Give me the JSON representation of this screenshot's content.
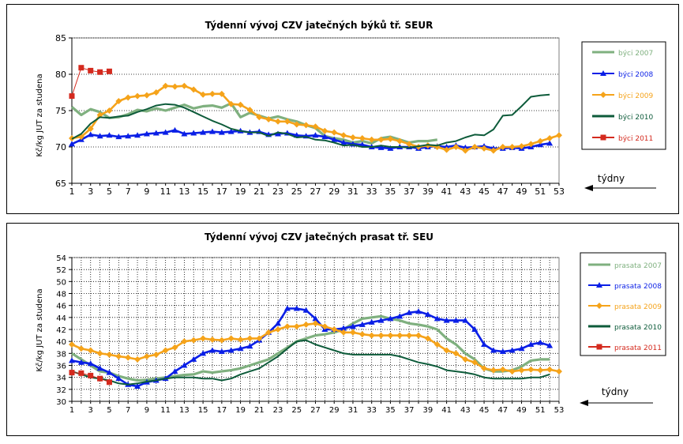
{
  "colors": {
    "y2007": "#7fb07f",
    "y2008": "#0a1fe6",
    "y2009": "#f5a31a",
    "y2010": "#0d5b3a",
    "y2011": "#d42a1e"
  },
  "tydny_label": "týdny",
  "chart_data": [
    {
      "type": "line",
      "title": "Týdenní vývoj CZV jatečných býků tř. SEUR",
      "ylabel": "Kč/kg JUT za studena",
      "xlabel": "",
      "ylim": [
        65,
        85
      ],
      "yticks": [
        65,
        70,
        75,
        80,
        85
      ],
      "xticks": [
        1,
        3,
        5,
        7,
        9,
        11,
        13,
        15,
        17,
        19,
        21,
        23,
        25,
        27,
        29,
        31,
        33,
        35,
        37,
        39,
        41,
        43,
        45,
        47,
        49,
        51,
        53
      ],
      "grid": true,
      "legend_position": "right",
      "series": [
        {
          "name": "býci 2007",
          "color_key": "y2007",
          "marker": "none",
          "x": [
            1,
            2,
            3,
            4,
            5,
            6,
            7,
            8,
            9,
            10,
            11,
            12,
            13,
            14,
            15,
            16,
            17,
            18,
            19,
            20,
            21,
            22,
            23,
            24,
            25,
            26,
            27,
            28,
            29,
            30,
            31,
            32,
            33,
            34,
            35,
            36,
            37,
            38,
            39,
            40
          ],
          "values": [
            75.5,
            74.4,
            75.2,
            74.8,
            74.0,
            74.1,
            74.5,
            75.1,
            74.9,
            75.3,
            75.0,
            75.4,
            75.8,
            75.3,
            75.6,
            75.7,
            75.4,
            76.0,
            74.1,
            74.7,
            74.3,
            73.9,
            74.2,
            73.8,
            73.5,
            73.0,
            72.6,
            71.5,
            71.2,
            71.0,
            70.6,
            70.8,
            70.5,
            71.2,
            71.4,
            71.0,
            70.6,
            70.8,
            70.8,
            71.0
          ]
        },
        {
          "name": "býci 2008",
          "color_key": "y2008",
          "marker": "triangle",
          "x": [
            1,
            2,
            3,
            4,
            5,
            6,
            7,
            8,
            9,
            10,
            11,
            12,
            13,
            14,
            15,
            16,
            17,
            18,
            19,
            20,
            21,
            22,
            23,
            24,
            25,
            26,
            27,
            28,
            29,
            30,
            31,
            32,
            33,
            34,
            35,
            36,
            37,
            38,
            39,
            40,
            41,
            42,
            43,
            44,
            45,
            46,
            47,
            48,
            49,
            50,
            51,
            52
          ],
          "values": [
            70.4,
            71.0,
            71.7,
            71.5,
            71.6,
            71.4,
            71.5,
            71.6,
            71.8,
            71.9,
            72.0,
            72.3,
            71.8,
            71.9,
            72.0,
            72.1,
            72.0,
            72.1,
            72.2,
            72.0,
            72.1,
            71.7,
            71.8,
            71.9,
            71.6,
            71.5,
            71.6,
            71.4,
            71.0,
            70.6,
            70.4,
            70.3,
            70.0,
            69.9,
            69.8,
            70.0,
            70.0,
            69.8,
            70.0,
            70.1,
            70.0,
            70.2,
            69.9,
            70.0,
            70.1,
            69.8,
            69.8,
            69.9,
            69.8,
            70.0,
            70.3,
            70.5
          ]
        },
        {
          "name": "býci 2009",
          "color_key": "y2009",
          "marker": "diamond",
          "x": [
            1,
            2,
            3,
            4,
            5,
            6,
            7,
            8,
            9,
            10,
            11,
            12,
            13,
            14,
            15,
            16,
            17,
            18,
            19,
            20,
            21,
            22,
            23,
            24,
            25,
            26,
            27,
            28,
            29,
            30,
            31,
            32,
            33,
            34,
            35,
            36,
            37,
            38,
            39,
            40,
            41,
            42,
            43,
            44,
            45,
            46,
            47,
            48,
            49,
            50,
            51,
            52,
            53
          ],
          "values": [
            71.2,
            71.4,
            72.5,
            74.4,
            75.0,
            76.3,
            76.8,
            77.0,
            77.1,
            77.5,
            78.4,
            78.3,
            78.4,
            77.9,
            77.2,
            77.3,
            77.3,
            75.9,
            75.8,
            75.1,
            74.1,
            73.8,
            73.5,
            73.5,
            73.1,
            73.0,
            72.8,
            72.2,
            72.0,
            71.6,
            71.3,
            71.2,
            71.0,
            71.0,
            71.1,
            70.8,
            70.4,
            70.0,
            70.2,
            70.0,
            69.6,
            70.0,
            69.5,
            70.0,
            69.8,
            69.5,
            70.0,
            70.0,
            70.1,
            70.4,
            70.8,
            71.2,
            71.6
          ]
        },
        {
          "name": "býci 2010",
          "color_key": "y2010",
          "marker": "none",
          "x": [
            1,
            2,
            3,
            4,
            5,
            6,
            7,
            8,
            9,
            10,
            11,
            12,
            13,
            14,
            15,
            16,
            17,
            18,
            19,
            20,
            21,
            22,
            23,
            24,
            25,
            26,
            27,
            28,
            29,
            30,
            31,
            32,
            33,
            34,
            35,
            36,
            37,
            38,
            39,
            40,
            41,
            42,
            43,
            44,
            45,
            46,
            47,
            48,
            49,
            50,
            51,
            52
          ],
          "values": [
            71.1,
            71.8,
            73.2,
            74.1,
            74.0,
            74.2,
            74.3,
            74.8,
            75.2,
            75.7,
            75.9,
            75.8,
            75.4,
            74.8,
            74.2,
            73.6,
            73.1,
            72.5,
            72.2,
            72.0,
            72.0,
            71.5,
            72.0,
            71.8,
            71.3,
            71.4,
            71.0,
            70.9,
            70.6,
            70.2,
            70.3,
            70.0,
            70.0,
            70.2,
            70.0,
            70.0,
            69.9,
            70.1,
            70.3,
            70.2,
            70.6,
            70.8,
            71.3,
            71.7,
            71.6,
            72.4,
            74.3,
            74.4,
            75.6,
            76.9,
            77.1,
            77.2
          ]
        },
        {
          "name": "býci 2011",
          "color_key": "y2011",
          "marker": "square",
          "x": [
            1,
            2,
            3,
            4,
            5
          ],
          "values": [
            77.0,
            80.9,
            80.5,
            80.3,
            80.4
          ]
        }
      ]
    },
    {
      "type": "line",
      "title": "Týdenní vývoj CZV jatečných prasat tř. SEU",
      "ylabel": "Kč/kg JUT za studena",
      "xlabel": "",
      "ylim": [
        30,
        54
      ],
      "yticks": [
        30,
        32,
        34,
        36,
        38,
        40,
        42,
        44,
        46,
        48,
        50,
        52,
        54
      ],
      "xticks": [
        1,
        3,
        5,
        7,
        9,
        11,
        13,
        15,
        17,
        19,
        21,
        23,
        25,
        27,
        29,
        31,
        33,
        35,
        37,
        39,
        41,
        43,
        45,
        47,
        49,
        51,
        53
      ],
      "grid": true,
      "legend_position": "right",
      "series": [
        {
          "name": "prasata 2007",
          "color_key": "y2007",
          "marker": "none",
          "x": [
            1,
            2,
            3,
            4,
            5,
            6,
            7,
            8,
            9,
            10,
            11,
            12,
            13,
            14,
            15,
            16,
            17,
            18,
            19,
            20,
            21,
            22,
            23,
            24,
            25,
            26,
            27,
            28,
            29,
            30,
            31,
            32,
            33,
            34,
            35,
            36,
            37,
            38,
            39,
            40,
            41,
            42,
            43,
            44,
            45,
            46,
            47,
            48,
            49,
            50,
            51,
            52
          ],
          "values": [
            38.0,
            37.0,
            36.0,
            35.0,
            34.8,
            34.2,
            33.8,
            33.5,
            33.6,
            33.8,
            34.0,
            34.2,
            34.4,
            34.5,
            35.0,
            34.8,
            35.0,
            35.2,
            35.5,
            36.0,
            36.5,
            37.0,
            38.0,
            39.0,
            40.0,
            40.5,
            41.0,
            41.2,
            41.5,
            42.0,
            43.0,
            43.8,
            44.0,
            44.2,
            43.8,
            43.5,
            43.0,
            42.8,
            42.5,
            42.0,
            40.5,
            39.5,
            38.0,
            37.0,
            35.5,
            35.0,
            35.0,
            35.2,
            35.8,
            36.8,
            37.0,
            37.0
          ]
        },
        {
          "name": "prasata 2008",
          "color_key": "y2008",
          "marker": "triangle",
          "x": [
            1,
            2,
            3,
            4,
            5,
            6,
            7,
            8,
            9,
            10,
            11,
            12,
            13,
            14,
            15,
            16,
            17,
            18,
            19,
            20,
            21,
            22,
            23,
            24,
            25,
            26,
            27,
            28,
            29,
            30,
            31,
            32,
            33,
            34,
            35,
            36,
            37,
            38,
            39,
            40,
            41,
            42,
            43,
            44,
            45,
            46,
            47,
            48,
            49,
            50,
            51,
            52
          ],
          "values": [
            36.8,
            36.5,
            36.3,
            35.5,
            34.8,
            33.8,
            32.8,
            32.5,
            33.2,
            33.5,
            33.8,
            35.0,
            36.0,
            37.0,
            38.0,
            38.5,
            38.3,
            38.5,
            38.8,
            39.2,
            40.2,
            41.5,
            43.0,
            45.5,
            45.5,
            45.2,
            43.8,
            42.0,
            42.0,
            42.2,
            42.5,
            42.8,
            43.2,
            43.5,
            43.8,
            44.2,
            44.8,
            45.0,
            44.5,
            43.8,
            43.5,
            43.5,
            43.5,
            42.0,
            39.5,
            38.5,
            38.3,
            38.5,
            38.8,
            39.5,
            39.8,
            39.3
          ]
        },
        {
          "name": "prasata 2009",
          "color_key": "y2009",
          "marker": "diamond",
          "x": [
            1,
            2,
            3,
            4,
            5,
            6,
            7,
            8,
            9,
            10,
            11,
            12,
            13,
            14,
            15,
            16,
            17,
            18,
            19,
            20,
            21,
            22,
            23,
            24,
            25,
            26,
            27,
            28,
            29,
            30,
            31,
            32,
            33,
            34,
            35,
            36,
            37,
            38,
            39,
            40,
            41,
            42,
            43,
            44,
            45,
            46,
            47,
            48,
            49,
            50,
            51,
            52,
            53
          ],
          "values": [
            39.5,
            38.8,
            38.5,
            38.0,
            37.8,
            37.5,
            37.3,
            37.0,
            37.5,
            37.8,
            38.5,
            39.0,
            40.0,
            40.2,
            40.5,
            40.3,
            40.2,
            40.5,
            40.3,
            40.5,
            40.5,
            41.5,
            42.0,
            42.5,
            42.5,
            42.8,
            43.0,
            42.5,
            42.0,
            41.5,
            41.5,
            41.2,
            41.0,
            41.0,
            41.0,
            41.0,
            41.0,
            41.0,
            40.5,
            39.5,
            38.5,
            38.0,
            37.0,
            36.5,
            35.5,
            35.2,
            35.3,
            35.0,
            35.2,
            35.3,
            35.2,
            35.3,
            35.0
          ]
        },
        {
          "name": "prasata 2010",
          "color_key": "y2010",
          "marker": "none",
          "x": [
            1,
            2,
            3,
            4,
            5,
            6,
            7,
            8,
            9,
            10,
            11,
            12,
            13,
            14,
            15,
            16,
            17,
            18,
            19,
            20,
            21,
            22,
            23,
            24,
            25,
            26,
            27,
            28,
            29,
            30,
            31,
            32,
            33,
            34,
            35,
            36,
            37,
            38,
            39,
            40,
            41,
            42,
            43,
            44,
            45,
            46,
            47,
            48,
            49,
            50,
            51,
            52
          ],
          "values": [
            35.0,
            34.5,
            34.0,
            33.8,
            33.5,
            33.0,
            32.8,
            33.0,
            33.3,
            33.5,
            33.8,
            34.0,
            34.0,
            34.0,
            33.8,
            33.8,
            33.5,
            33.8,
            34.5,
            35.0,
            35.5,
            36.5,
            37.5,
            38.8,
            40.0,
            40.2,
            39.5,
            39.0,
            38.5,
            38.0,
            37.8,
            37.8,
            37.8,
            37.8,
            37.8,
            37.5,
            37.0,
            36.5,
            36.2,
            35.8,
            35.2,
            35.0,
            34.8,
            34.5,
            34.0,
            33.8,
            33.8,
            33.8,
            33.8,
            34.0,
            34.0,
            34.5
          ]
        },
        {
          "name": "prasata 2011",
          "color_key": "y2011",
          "marker": "square",
          "x": [
            1,
            2,
            3,
            4,
            5
          ],
          "values": [
            34.8,
            34.7,
            34.3,
            33.8,
            33.2
          ]
        }
      ]
    }
  ]
}
